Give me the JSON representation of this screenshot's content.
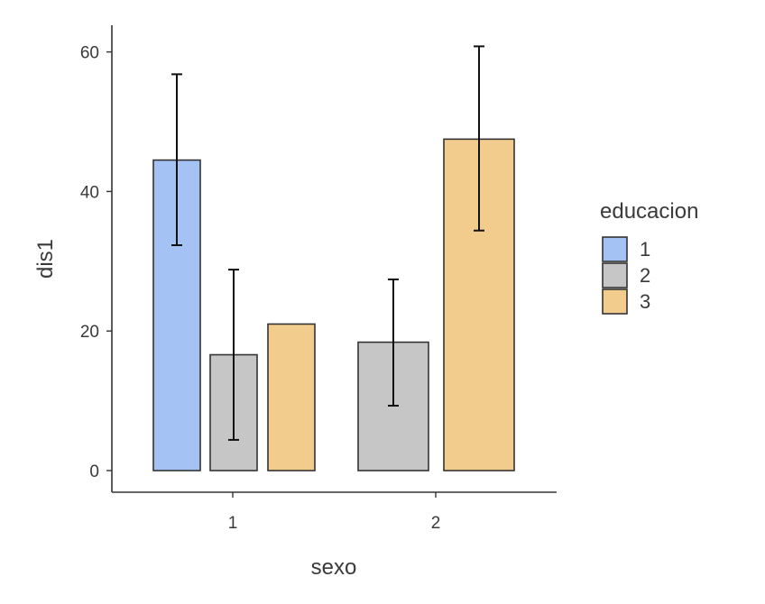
{
  "chart_data": {
    "type": "bar",
    "xlabel": "sexo",
    "ylabel": "dis1",
    "ylim": [
      0,
      64
    ],
    "yticks": [
      0,
      20,
      40,
      60
    ],
    "grid": false,
    "legend_placement": "right",
    "legend_title": "educacion",
    "categories": [
      "1",
      "2"
    ],
    "series": [
      {
        "name": "1",
        "color": "#a4c2f4",
        "values": [
          44.5,
          null
        ],
        "error_low": [
          32.3,
          null
        ],
        "error_high": [
          56.8,
          null
        ]
      },
      {
        "name": "2",
        "color": "#c6c6c6",
        "values": [
          16.6,
          18.4
        ],
        "error_low": [
          4.4,
          9.3
        ],
        "error_high": [
          28.8,
          27.4
        ]
      },
      {
        "name": "3",
        "color": "#f1cc8d",
        "values": [
          21.0,
          47.5
        ],
        "error_low": [
          null,
          34.4
        ],
        "error_high": [
          null,
          60.8
        ]
      }
    ]
  }
}
